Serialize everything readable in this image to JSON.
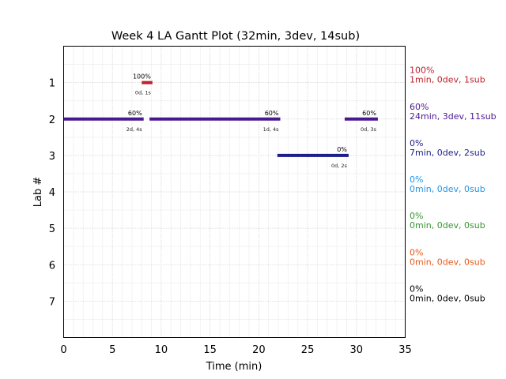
{
  "chart_data": {
    "type": "gantt",
    "title": "Week 4 LA Gantt Plot (32min, 3dev, 14sub)",
    "xlabel": "Time (min)",
    "ylabel": "Lab #",
    "xlim": [
      0,
      35
    ],
    "ylim": [
      8,
      0
    ],
    "xticks": [
      0,
      5,
      10,
      15,
      20,
      25,
      30,
      35
    ],
    "yticks": [
      1,
      2,
      3,
      4,
      5,
      6,
      7
    ],
    "grid": true,
    "bars": [
      {
        "lab": 1,
        "start": 8.0,
        "end": 9.1,
        "color": "#c0202a",
        "pct_label": "100%",
        "sub_label": "0d, 1s"
      },
      {
        "lab": 2,
        "start": 0.0,
        "end": 8.2,
        "color": "#4b1890",
        "pct_label": "60%",
        "sub_label": "2d, 4s"
      },
      {
        "lab": 2,
        "start": 8.8,
        "end": 22.2,
        "color": "#4b1890",
        "pct_label": "60%",
        "sub_label": "1d, 4s"
      },
      {
        "lab": 2,
        "start": 28.8,
        "end": 32.2,
        "color": "#4b1890",
        "pct_label": "60%",
        "sub_label": "0d, 3s"
      },
      {
        "lab": 3,
        "start": 21.9,
        "end": 29.2,
        "color": "#1c1f86",
        "pct_label": "0%",
        "sub_label": "0d, 2s"
      }
    ],
    "summaries": [
      {
        "lab": 1,
        "pct": "100%",
        "stats": "1min, 0dev, 1sub",
        "color": "#c0202a"
      },
      {
        "lab": 2,
        "pct": "60%",
        "stats": "24min, 3dev, 11sub",
        "color": "#4b1890"
      },
      {
        "lab": 3,
        "pct": "0%",
        "stats": "7min, 0dev, 2sub",
        "color": "#1c1f86"
      },
      {
        "lab": 4,
        "pct": "0%",
        "stats": "0min, 0dev, 0sub",
        "color": "#2196e8"
      },
      {
        "lab": 5,
        "pct": "0%",
        "stats": "0min, 0dev, 0sub",
        "color": "#35952f"
      },
      {
        "lab": 6,
        "pct": "0%",
        "stats": "0min, 0dev, 0sub",
        "color": "#e65a1a"
      },
      {
        "lab": 7,
        "pct": "0%",
        "stats": "0min, 0dev, 0sub",
        "color": "#000000"
      }
    ]
  }
}
